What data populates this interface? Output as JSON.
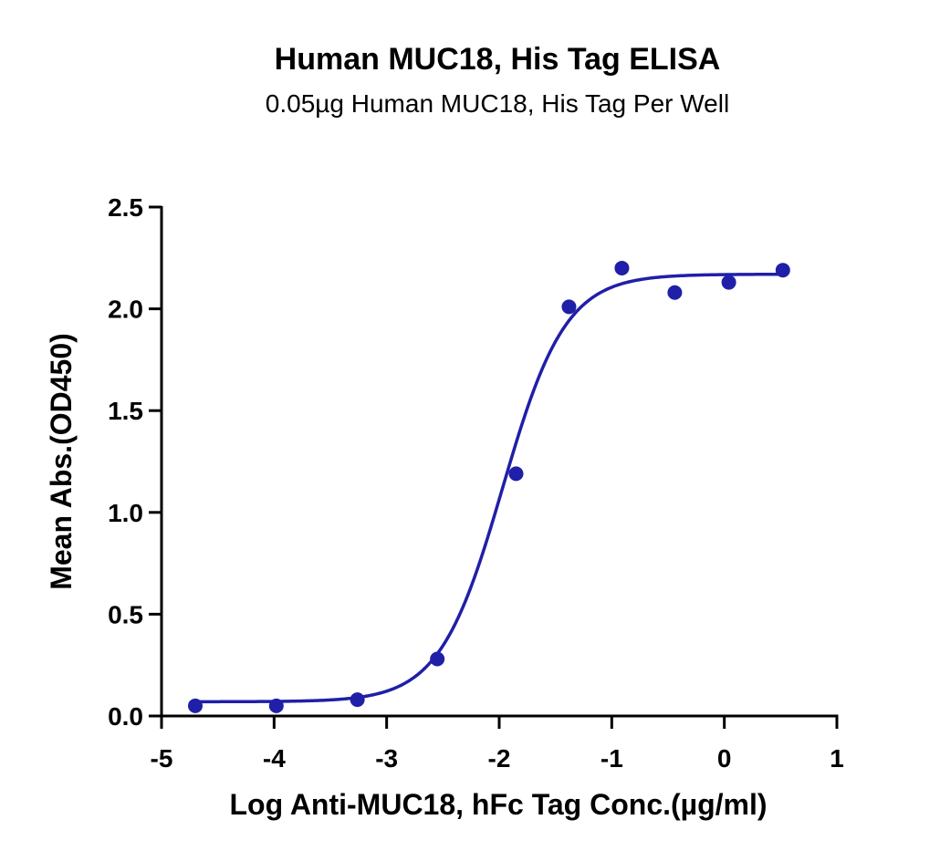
{
  "chart_data": {
    "type": "scatter",
    "title": "Human MUC18, His Tag ELISA",
    "subtitle": "0.05µg Human MUC18, His Tag Per Well",
    "xlabel": "Log Anti-MUC18, hFc Tag Conc.(µg/ml)",
    "ylabel": "Mean Abs.(OD450)",
    "xlim": [
      -5,
      1
    ],
    "ylim": [
      0,
      2.5
    ],
    "xticks": [
      -5,
      -4,
      -3,
      -2,
      -1,
      0,
      1
    ],
    "xtick_labels": [
      "-5",
      "-4",
      "-3",
      "-2",
      "-1",
      "0",
      "1"
    ],
    "yticks": [
      0,
      0.5,
      1.0,
      1.5,
      2.0,
      2.5
    ],
    "ytick_labels": [
      "0.0",
      "0.5",
      "1.0",
      "1.5",
      "2.0",
      "2.5"
    ],
    "grid": false,
    "color": "#1f1fa8",
    "series": [
      {
        "x": [
          -4.7,
          -3.98,
          -3.26,
          -2.55,
          -1.85,
          -1.38,
          -0.91,
          -0.44,
          0.04,
          0.52
        ],
        "y": [
          0.05,
          0.05,
          0.08,
          0.28,
          1.19,
          2.01,
          2.2,
          2.08,
          2.13,
          2.19
        ]
      }
    ],
    "fit": {
      "model": "4PL",
      "bottom": 0.07,
      "top": 2.17,
      "logEC50": -1.97,
      "hill": 1.55
    }
  }
}
